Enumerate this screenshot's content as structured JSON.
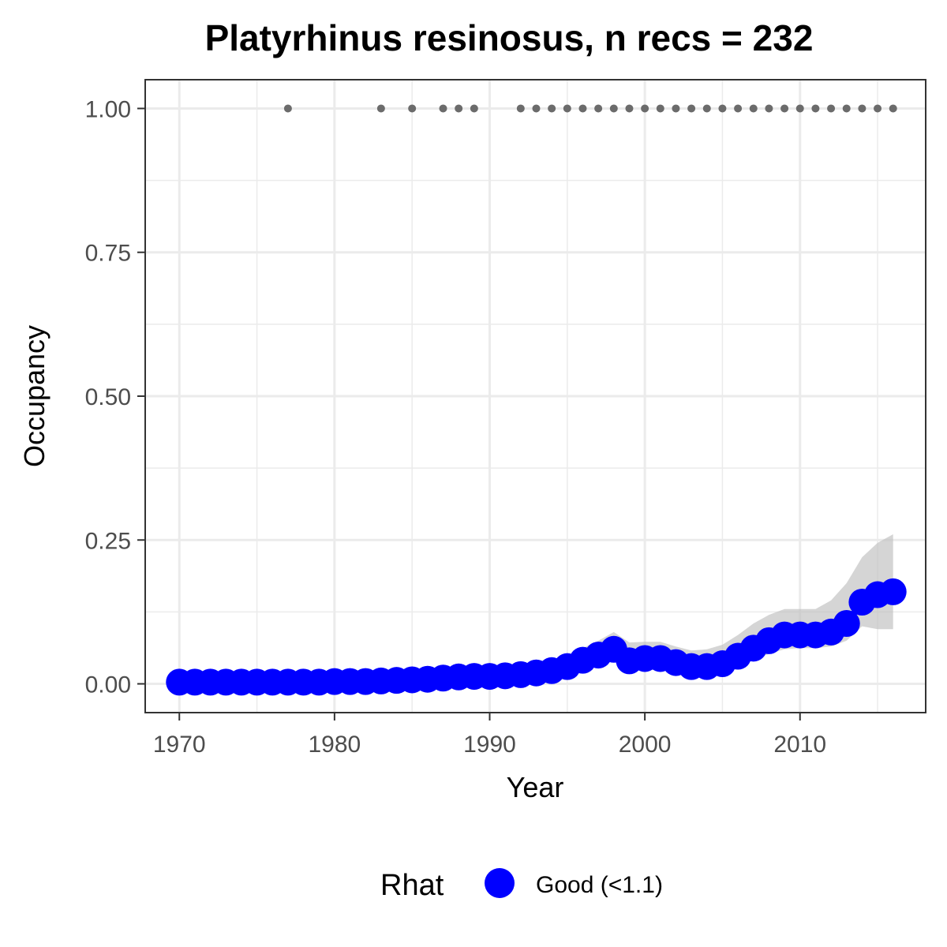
{
  "chart_data": {
    "type": "line",
    "title": "Platyrhinus resinosus, n recs = 232",
    "xlabel": "Year",
    "ylabel": "Occupancy",
    "xlim": [
      1967.8,
      1973.0
    ],
    "ylim": [
      -0.05,
      1.05
    ],
    "x_ticks": [
      1970,
      1980,
      1990,
      2000,
      2010
    ],
    "x_tick_labels": [
      "1970",
      "1980",
      "1990",
      "2000",
      "2010"
    ],
    "y_ticks": [
      0.0,
      0.25,
      0.5,
      0.75,
      1.0
    ],
    "y_tick_labels": [
      "0.00",
      "0.25",
      "0.50",
      "0.75",
      "1.00"
    ],
    "grid": true,
    "legend": {
      "title": "Rhat",
      "placement": "bottom",
      "entries": [
        {
          "label": "Good (<1.1)",
          "color": "#0000ff"
        }
      ]
    },
    "colors": {
      "series": "#0000ff",
      "ribbon": "#bebebe",
      "records": "#6b6b6b",
      "panel_border": "#333333",
      "grid": "#ebebeb"
    },
    "series": [
      {
        "name": "Good (<1.1)",
        "x": [
          1970,
          1971,
          1972,
          1973,
          1974,
          1975,
          1976,
          1977,
          1978,
          1979,
          1980,
          1981,
          1982,
          1983,
          1984,
          1985,
          1986,
          1987,
          1988,
          1989,
          1990,
          1991,
          1992,
          1993,
          1994,
          1995,
          1996,
          1997,
          1998,
          1999,
          2000,
          2001,
          2002,
          2003,
          2004,
          2005,
          2006,
          2007,
          2008,
          2009,
          2010,
          2011,
          2012,
          2013,
          2014,
          2015,
          2016
        ],
        "y": [
          0.003,
          0.003,
          0.003,
          0.003,
          0.003,
          0.003,
          0.003,
          0.003,
          0.003,
          0.003,
          0.004,
          0.004,
          0.004,
          0.005,
          0.006,
          0.007,
          0.008,
          0.01,
          0.012,
          0.013,
          0.013,
          0.014,
          0.016,
          0.019,
          0.023,
          0.03,
          0.041,
          0.05,
          0.06,
          0.04,
          0.044,
          0.044,
          0.037,
          0.03,
          0.03,
          0.035,
          0.048,
          0.062,
          0.075,
          0.085,
          0.085,
          0.085,
          0.09,
          0.105,
          0.142,
          0.155,
          0.16
        ],
        "lower": [
          0.0,
          0.0,
          0.0,
          0.0,
          0.0,
          0.0,
          0.0,
          0.0,
          0.0,
          0.0,
          0.0,
          0.0,
          0.0,
          0.0,
          0.001,
          0.001,
          0.002,
          0.003,
          0.004,
          0.005,
          0.005,
          0.006,
          0.007,
          0.009,
          0.012,
          0.017,
          0.026,
          0.034,
          0.042,
          0.03,
          0.033,
          0.033,
          0.026,
          0.02,
          0.02,
          0.023,
          0.031,
          0.042,
          0.052,
          0.06,
          0.062,
          0.062,
          0.065,
          0.075,
          0.1,
          0.095,
          0.095
        ],
        "upper": [
          0.01,
          0.01,
          0.01,
          0.01,
          0.01,
          0.01,
          0.01,
          0.01,
          0.01,
          0.01,
          0.012,
          0.012,
          0.012,
          0.013,
          0.015,
          0.017,
          0.019,
          0.022,
          0.025,
          0.027,
          0.027,
          0.028,
          0.031,
          0.035,
          0.04,
          0.048,
          0.062,
          0.075,
          0.09,
          0.072,
          0.073,
          0.073,
          0.065,
          0.058,
          0.06,
          0.068,
          0.085,
          0.105,
          0.12,
          0.13,
          0.13,
          0.13,
          0.145,
          0.175,
          0.22,
          0.245,
          0.26
        ]
      }
    ],
    "record_points": {
      "y": 1.0,
      "x": [
        1977,
        1983,
        1985,
        1987,
        1988,
        1989,
        1992,
        1993,
        1994,
        1995,
        1996,
        1997,
        1998,
        1999,
        2000,
        2001,
        2002,
        2003,
        2004,
        2005,
        2006,
        2007,
        2008,
        2009,
        2010,
        2011,
        2012,
        2013,
        2014,
        2015,
        2016
      ]
    }
  }
}
